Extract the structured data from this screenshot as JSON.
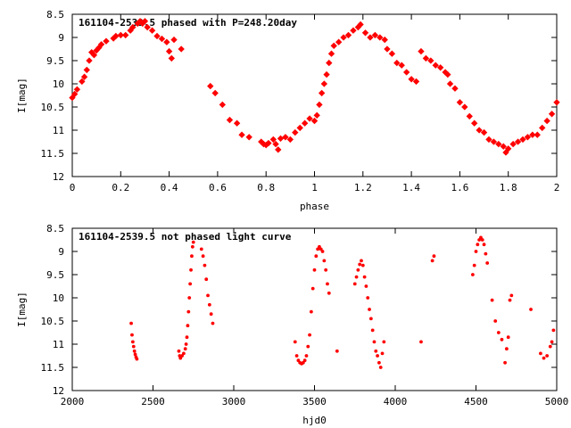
{
  "chart_data": [
    {
      "type": "scatter",
      "title": "161104-2539.5 phased with P=248.20day",
      "xlabel": "phase",
      "ylabel": "I[mag]",
      "xlim": [
        0,
        2
      ],
      "ylim": [
        12,
        8.5
      ],
      "y_inverted": true,
      "xticks": [
        "0",
        "0.2",
        "0.4",
        "0.6",
        "0.8",
        "1",
        "1.2",
        "1.4",
        "1.6",
        "1.8",
        "2"
      ],
      "yticks": [
        "8.5",
        "9",
        "9.5",
        "10",
        "10.5",
        "11",
        "11.5",
        "12"
      ],
      "marker_color": "#ff0000",
      "grid": false,
      "points": [
        [
          0.0,
          10.3
        ],
        [
          0.01,
          10.22
        ],
        [
          0.02,
          10.12
        ],
        [
          0.04,
          9.95
        ],
        [
          0.05,
          9.85
        ],
        [
          0.06,
          9.7
        ],
        [
          0.07,
          9.5
        ],
        [
          0.08,
          9.32
        ],
        [
          0.09,
          9.38
        ],
        [
          0.1,
          9.28
        ],
        [
          0.11,
          9.22
        ],
        [
          0.12,
          9.15
        ],
        [
          0.14,
          9.08
        ],
        [
          0.17,
          9.02
        ],
        [
          0.18,
          8.97
        ],
        [
          0.2,
          8.95
        ],
        [
          0.22,
          8.95
        ],
        [
          0.24,
          8.85
        ],
        [
          0.25,
          8.78
        ],
        [
          0.27,
          8.7
        ],
        [
          0.28,
          8.65
        ],
        [
          0.29,
          8.7
        ],
        [
          0.3,
          8.65
        ],
        [
          0.31,
          8.78
        ],
        [
          0.33,
          8.85
        ],
        [
          0.35,
          8.97
        ],
        [
          0.37,
          9.03
        ],
        [
          0.39,
          9.1
        ],
        [
          0.4,
          9.3
        ],
        [
          0.41,
          9.45
        ],
        [
          0.42,
          9.05
        ],
        [
          0.45,
          9.25
        ],
        [
          0.57,
          10.05
        ],
        [
          0.59,
          10.2
        ],
        [
          0.62,
          10.45
        ],
        [
          0.65,
          10.78
        ],
        [
          0.68,
          10.85
        ],
        [
          0.7,
          11.1
        ],
        [
          0.73,
          11.15
        ],
        [
          0.78,
          11.25
        ],
        [
          0.79,
          11.3
        ],
        [
          0.8,
          11.32
        ],
        [
          0.81,
          11.28
        ],
        [
          0.83,
          11.2
        ],
        [
          0.84,
          11.3
        ],
        [
          0.85,
          11.42
        ],
        [
          0.86,
          11.18
        ],
        [
          0.88,
          11.15
        ],
        [
          0.9,
          11.2
        ],
        [
          0.92,
          11.05
        ],
        [
          0.94,
          10.95
        ],
        [
          0.96,
          10.85
        ],
        [
          0.98,
          10.75
        ],
        [
          1.0,
          10.8
        ],
        [
          1.01,
          10.68
        ],
        [
          1.02,
          10.45
        ],
        [
          1.03,
          10.2
        ],
        [
          1.04,
          10.0
        ],
        [
          1.05,
          9.8
        ],
        [
          1.06,
          9.55
        ],
        [
          1.07,
          9.35
        ],
        [
          1.08,
          9.18
        ],
        [
          1.1,
          9.1
        ],
        [
          1.12,
          9.0
        ],
        [
          1.14,
          8.95
        ],
        [
          1.16,
          8.85
        ],
        [
          1.18,
          8.78
        ],
        [
          1.19,
          8.72
        ],
        [
          1.21,
          8.9
        ],
        [
          1.23,
          9.0
        ],
        [
          1.25,
          8.95
        ],
        [
          1.27,
          9.0
        ],
        [
          1.29,
          9.05
        ],
        [
          1.3,
          9.25
        ],
        [
          1.32,
          9.35
        ],
        [
          1.34,
          9.55
        ],
        [
          1.36,
          9.6
        ],
        [
          1.38,
          9.75
        ],
        [
          1.4,
          9.9
        ],
        [
          1.42,
          9.95
        ],
        [
          1.44,
          9.3
        ],
        [
          1.46,
          9.45
        ],
        [
          1.48,
          9.5
        ],
        [
          1.5,
          9.6
        ],
        [
          1.52,
          9.65
        ],
        [
          1.54,
          9.75
        ],
        [
          1.55,
          9.8
        ],
        [
          1.56,
          10.0
        ],
        [
          1.58,
          10.1
        ],
        [
          1.6,
          10.4
        ],
        [
          1.62,
          10.5
        ],
        [
          1.64,
          10.7
        ],
        [
          1.66,
          10.85
        ],
        [
          1.68,
          11.0
        ],
        [
          1.7,
          11.05
        ],
        [
          1.72,
          11.2
        ],
        [
          1.74,
          11.25
        ],
        [
          1.76,
          11.3
        ],
        [
          1.78,
          11.35
        ],
        [
          1.79,
          11.48
        ],
        [
          1.8,
          11.4
        ],
        [
          1.82,
          11.3
        ],
        [
          1.84,
          11.25
        ],
        [
          1.86,
          11.2
        ],
        [
          1.88,
          11.15
        ],
        [
          1.9,
          11.1
        ],
        [
          1.92,
          11.1
        ],
        [
          1.94,
          10.95
        ],
        [
          1.96,
          10.8
        ],
        [
          1.98,
          10.65
        ],
        [
          2.0,
          10.4
        ]
      ]
    },
    {
      "type": "scatter",
      "title": "161104-2539.5 not phased light curve",
      "xlabel": "hjd0",
      "ylabel": "I[mag]",
      "xlim": [
        2000,
        5000
      ],
      "ylim": [
        12,
        8.5
      ],
      "y_inverted": true,
      "xticks": [
        "2000",
        "2500",
        "3000",
        "3500",
        "4000",
        "4500",
        "5000"
      ],
      "yticks": [
        "8.5",
        "9",
        "9.5",
        "10",
        "10.5",
        "11",
        "11.5",
        "12"
      ],
      "marker_color": "#ff0000",
      "grid": false,
      "points": [
        [
          2365,
          10.55
        ],
        [
          2370,
          10.8
        ],
        [
          2375,
          10.95
        ],
        [
          2380,
          11.05
        ],
        [
          2385,
          11.15
        ],
        [
          2390,
          11.22
        ],
        [
          2395,
          11.28
        ],
        [
          2400,
          11.32
        ],
        [
          2660,
          11.15
        ],
        [
          2665,
          11.25
        ],
        [
          2670,
          11.3
        ],
        [
          2680,
          11.25
        ],
        [
          2690,
          11.2
        ],
        [
          2700,
          11.1
        ],
        [
          2705,
          11.0
        ],
        [
          2710,
          10.85
        ],
        [
          2715,
          10.6
        ],
        [
          2720,
          10.3
        ],
        [
          2725,
          10.0
        ],
        [
          2730,
          9.7
        ],
        [
          2735,
          9.4
        ],
        [
          2740,
          9.1
        ],
        [
          2745,
          8.9
        ],
        [
          2750,
          8.8
        ],
        [
          2800,
          8.95
        ],
        [
          2810,
          9.1
        ],
        [
          2820,
          9.3
        ],
        [
          2830,
          9.6
        ],
        [
          2840,
          9.95
        ],
        [
          2850,
          10.15
        ],
        [
          2860,
          10.35
        ],
        [
          2870,
          10.55
        ],
        [
          3380,
          10.95
        ],
        [
          3390,
          11.25
        ],
        [
          3400,
          11.35
        ],
        [
          3410,
          11.4
        ],
        [
          3420,
          11.42
        ],
        [
          3430,
          11.4
        ],
        [
          3440,
          11.35
        ],
        [
          3450,
          11.25
        ],
        [
          3460,
          11.05
        ],
        [
          3470,
          10.8
        ],
        [
          3480,
          10.3
        ],
        [
          3490,
          9.8
        ],
        [
          3500,
          9.4
        ],
        [
          3510,
          9.1
        ],
        [
          3520,
          8.95
        ],
        [
          3530,
          8.9
        ],
        [
          3540,
          8.95
        ],
        [
          3550,
          9.0
        ],
        [
          3560,
          9.2
        ],
        [
          3570,
          9.4
        ],
        [
          3580,
          9.7
        ],
        [
          3590,
          9.9
        ],
        [
          3640,
          11.15
        ],
        [
          3750,
          9.7
        ],
        [
          3760,
          9.55
        ],
        [
          3770,
          9.4
        ],
        [
          3780,
          9.28
        ],
        [
          3790,
          9.2
        ],
        [
          3800,
          9.3
        ],
        [
          3810,
          9.55
        ],
        [
          3820,
          9.75
        ],
        [
          3830,
          10.0
        ],
        [
          3840,
          10.25
        ],
        [
          3850,
          10.45
        ],
        [
          3860,
          10.7
        ],
        [
          3870,
          10.95
        ],
        [
          3880,
          11.15
        ],
        [
          3890,
          11.25
        ],
        [
          3900,
          11.4
        ],
        [
          3910,
          11.5
        ],
        [
          3920,
          11.2
        ],
        [
          3930,
          10.95
        ],
        [
          4160,
          10.95
        ],
        [
          4230,
          9.2
        ],
        [
          4240,
          9.1
        ],
        [
          4480,
          9.5
        ],
        [
          4490,
          9.3
        ],
        [
          4500,
          9.0
        ],
        [
          4510,
          8.85
        ],
        [
          4520,
          8.75
        ],
        [
          4530,
          8.7
        ],
        [
          4540,
          8.75
        ],
        [
          4550,
          8.85
        ],
        [
          4560,
          9.05
        ],
        [
          4570,
          9.25
        ],
        [
          4600,
          10.05
        ],
        [
          4620,
          10.5
        ],
        [
          4640,
          10.75
        ],
        [
          4660,
          10.9
        ],
        [
          4680,
          11.4
        ],
        [
          4690,
          11.1
        ],
        [
          4700,
          10.85
        ],
        [
          4710,
          10.05
        ],
        [
          4720,
          9.95
        ],
        [
          4840,
          10.25
        ],
        [
          4900,
          11.2
        ],
        [
          4920,
          11.3
        ],
        [
          4940,
          11.25
        ],
        [
          4960,
          11.05
        ],
        [
          4970,
          10.95
        ],
        [
          4980,
          10.7
        ]
      ]
    }
  ]
}
